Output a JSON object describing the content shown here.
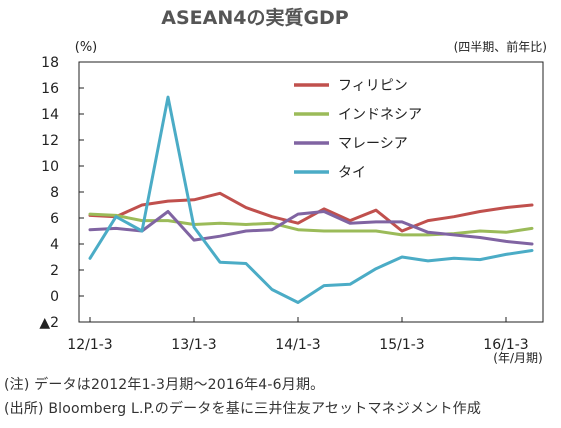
{
  "chart_data": {
    "type": "line",
    "title": "ASEAN4の実質GDP",
    "y_unit": "(%)",
    "y_note": "(四半期、前年比)",
    "x_unit": "(年/月期)",
    "ylim": [
      -2,
      18
    ],
    "yticks": [
      18,
      16,
      14,
      12,
      10,
      8,
      6,
      4,
      2,
      0,
      -2
    ],
    "ytick_labels": [
      "18",
      "16",
      "14",
      "12",
      "10",
      "8",
      "6",
      "4",
      "2",
      "0",
      "▲2"
    ],
    "grid": false,
    "legend_position": "top-right",
    "x": [
      "2012/1-3",
      "2012/4-6",
      "2012/7-9",
      "2012/10-12",
      "2013/1-3",
      "2013/4-6",
      "2013/7-9",
      "2013/10-12",
      "2014/1-3",
      "2014/4-6",
      "2014/7-9",
      "2014/10-12",
      "2015/1-3",
      "2015/4-6",
      "2015/7-9",
      "2015/10-12",
      "2016/1-3",
      "2016/4-6"
    ],
    "xtick_labels": [
      {
        "index": 0,
        "label": "12/1-3"
      },
      {
        "index": 4,
        "label": "13/1-3"
      },
      {
        "index": 8,
        "label": "14/1-3"
      },
      {
        "index": 12,
        "label": "15/1-3"
      },
      {
        "index": 16,
        "label": "16/1-3"
      }
    ],
    "series": [
      {
        "name": "フィリピン",
        "color": "#c0504d",
        "values": [
          6.2,
          6.1,
          7.0,
          7.3,
          7.4,
          7.9,
          6.8,
          6.1,
          5.6,
          6.7,
          5.8,
          6.6,
          5.0,
          5.8,
          6.1,
          6.5,
          6.8,
          7.0
        ]
      },
      {
        "name": "インドネシア",
        "color": "#9bbb59",
        "values": [
          6.3,
          6.2,
          5.8,
          5.8,
          5.5,
          5.6,
          5.5,
          5.6,
          5.1,
          5.0,
          5.0,
          5.0,
          4.7,
          4.7,
          4.8,
          5.0,
          4.9,
          5.2
        ]
      },
      {
        "name": "マレーシア",
        "color": "#8064a2",
        "values": [
          5.1,
          5.2,
          5.0,
          6.5,
          4.3,
          4.6,
          5.0,
          5.1,
          6.3,
          6.5,
          5.6,
          5.7,
          5.7,
          4.9,
          4.7,
          4.5,
          4.2,
          4.0
        ]
      },
      {
        "name": "タイ",
        "color": "#4bacc6",
        "values": [
          2.9,
          6.1,
          5.0,
          15.3,
          5.3,
          2.6,
          2.5,
          0.5,
          -0.5,
          0.8,
          0.9,
          2.1,
          3.0,
          2.7,
          2.9,
          2.8,
          3.2,
          3.5
        ]
      }
    ]
  },
  "notes": {
    "line1": "(注) データは2012年1-3月期〜2016年4-6月期。",
    "line2": "(出所) Bloomberg L.P.のデータを基に三井住友アセットマネジメント作成"
  }
}
